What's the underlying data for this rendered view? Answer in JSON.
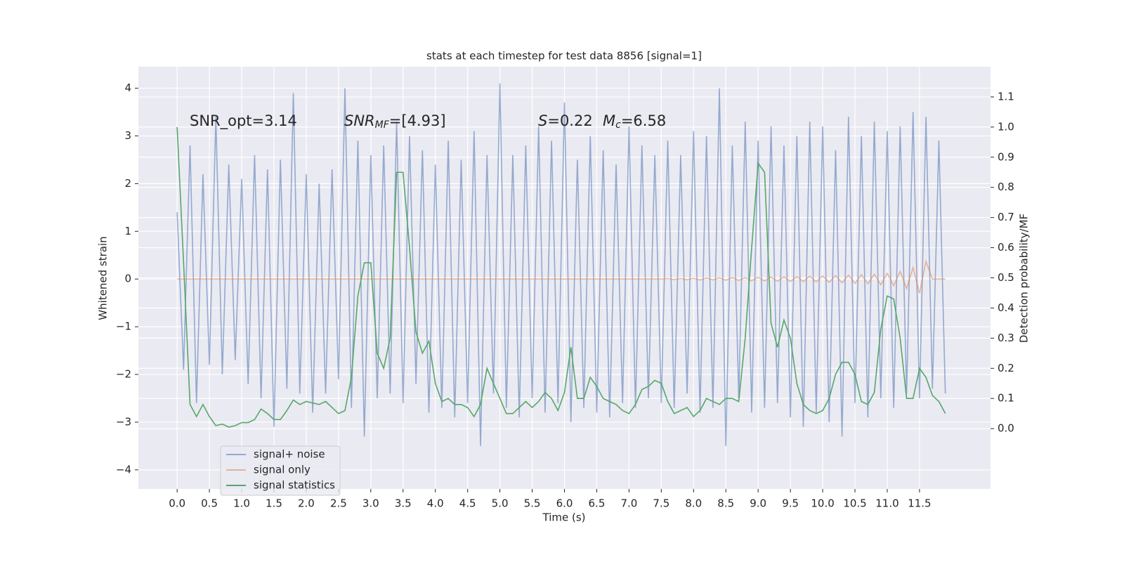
{
  "chart_data": {
    "type": "line",
    "title": "stats at each timestep for test data 8856 [signal=1]",
    "xlabel": "Time (s)",
    "ylabel": "Whitened strain",
    "y2label": "Detection probability/MF",
    "annotations": [
      {
        "base": "SNR_opt=3.14"
      },
      {
        "base": "SNR",
        "sub": "MF",
        "rest": "=[4.93]"
      },
      {
        "base": "S",
        "rest": "=0.22"
      },
      {
        "base": "M",
        "sub": "c",
        "rest": "=6.58"
      }
    ],
    "grid": true,
    "legend": "lower left",
    "xlim": [
      -0.6,
      12.6
    ],
    "ylim": [
      -4.4,
      4.45
    ],
    "y2lim": [
      -0.2,
      1.2
    ],
    "xticks": [
      {
        "value": 0,
        "label": "0.0"
      },
      0.5,
      {
        "value": 1,
        "label": "1.0"
      },
      1.5,
      {
        "value": 2,
        "label": "2.0"
      },
      2.5,
      {
        "value": 3,
        "label": "3.0"
      },
      3.5,
      {
        "value": 4,
        "label": "4.0"
      },
      4.5,
      {
        "value": 5,
        "label": "5.0"
      },
      5.5,
      {
        "value": 6,
        "label": "6.0"
      },
      6.5,
      {
        "value": 7,
        "label": "7.0"
      },
      7.5,
      {
        "value": 8,
        "label": "8.0"
      },
      8.5,
      {
        "value": 9,
        "label": "9.0"
      },
      9.5,
      {
        "value": 10,
        "label": "10.0"
      },
      10.5,
      {
        "value": 11,
        "label": "11.0"
      },
      11.5
    ],
    "yticks": [
      -4,
      -3,
      -2,
      -1,
      0,
      1,
      2,
      3,
      4
    ],
    "y2ticks": [
      {
        "value": 0,
        "label": "0.0"
      },
      0.1,
      0.2,
      0.3,
      0.4,
      0.5,
      0.6,
      0.7,
      0.8,
      0.9,
      {
        "value": 1,
        "label": "1.0"
      },
      1.1
    ],
    "x": [
      0,
      0.1,
      0.2,
      0.3,
      0.4,
      0.5,
      0.6,
      0.7,
      0.8,
      0.9,
      1,
      1.1,
      1.2,
      1.3,
      1.4,
      1.5,
      1.6,
      1.7,
      1.8,
      1.9,
      2,
      2.1,
      2.2,
      2.3,
      2.4,
      2.5,
      2.6,
      2.7,
      2.8,
      2.9,
      3,
      3.1,
      3.2,
      3.3,
      3.4,
      3.5,
      3.6,
      3.7,
      3.8,
      3.9,
      4,
      4.1,
      4.2,
      4.3,
      4.4,
      4.5,
      4.6,
      4.7,
      4.8,
      4.9,
      5,
      5.1,
      5.2,
      5.3,
      5.4,
      5.5,
      5.6,
      5.7,
      5.8,
      5.9,
      6,
      6.1,
      6.2,
      6.3,
      6.4,
      6.5,
      6.6,
      6.7,
      6.8,
      6.9,
      7,
      7.1,
      7.2,
      7.3,
      7.4,
      7.5,
      7.6,
      7.7,
      7.8,
      7.9,
      8,
      8.1,
      8.2,
      8.3,
      8.4,
      8.5,
      8.6,
      8.7,
      8.8,
      8.9,
      9,
      9.1,
      9.2,
      9.3,
      9.4,
      9.5,
      9.6,
      9.7,
      9.8,
      9.9,
      10,
      10.1,
      10.2,
      10.3,
      10.4,
      10.5,
      10.6,
      10.7,
      10.8,
      10.9,
      11,
      11.1,
      11.2,
      11.3,
      11.4,
      11.5,
      11.6,
      11.7,
      11.8,
      11.9
    ],
    "series": [
      {
        "name": "signal+ noise",
        "color": "#4c72b0",
        "values": [
          1.4,
          -1.9,
          2.8,
          -2.6,
          2.2,
          -1.8,
          3.4,
          -2.0,
          2.4,
          -1.7,
          2.1,
          -2.2,
          2.6,
          -2.5,
          2.3,
          -3.1,
          2.5,
          -2.3,
          3.9,
          -2.4,
          2.2,
          -2.8,
          2.0,
          -2.4,
          2.3,
          -2.1,
          4.0,
          -2.7,
          2.9,
          -3.3,
          2.6,
          -2.5,
          2.8,
          -2.4,
          3.3,
          -2.6,
          3.0,
          -2.2,
          2.7,
          -2.8,
          2.4,
          -2.7,
          2.9,
          -2.9,
          2.5,
          -2.6,
          3.1,
          -3.5,
          2.6,
          -2.4,
          4.1,
          -2.7,
          2.6,
          -2.9,
          2.8,
          -2.5,
          3.2,
          -2.8,
          2.9,
          -2.6,
          3.7,
          -3.0,
          2.5,
          -2.7,
          3.0,
          -2.8,
          2.7,
          -2.9,
          2.4,
          -2.6,
          3.2,
          -2.7,
          2.8,
          -2.5,
          2.6,
          -2.6,
          2.9,
          -2.7,
          2.6,
          -2.4,
          3.1,
          -2.8,
          3.0,
          -2.7,
          4.0,
          -3.5,
          2.8,
          -2.5,
          3.3,
          -2.8,
          2.9,
          -2.7,
          3.2,
          -2.6,
          2.8,
          -2.9,
          3.0,
          -3.1,
          3.3,
          -2.8,
          3.2,
          -3.0,
          2.7,
          -3.3,
          3.4,
          -2.6,
          3.0,
          -2.9,
          3.3,
          -2.5,
          3.1,
          -2.7,
          3.2,
          -2.4,
          3.5,
          -2.5,
          3.4,
          -2.3,
          2.9,
          -2.4
        ]
      },
      {
        "name": "signal only",
        "color": "#dd8452",
        "values": [
          0,
          0,
          0,
          0,
          0,
          0,
          0,
          0,
          0,
          0,
          0,
          0,
          0,
          0,
          0,
          0,
          0,
          0,
          0,
          0,
          0,
          0,
          0,
          0,
          0,
          0,
          0,
          0,
          0,
          0,
          0,
          0,
          0,
          0,
          0,
          0,
          0,
          0,
          0,
          0,
          0,
          0,
          0,
          0,
          0,
          0,
          0,
          0,
          0,
          0,
          0,
          0,
          0,
          0,
          0,
          0,
          0,
          0,
          0,
          0,
          0,
          0,
          0,
          0,
          0,
          0,
          0,
          0,
          0,
          0,
          0,
          0,
          0,
          0,
          0,
          0,
          0.01,
          -0.01,
          0.01,
          -0.015,
          0.015,
          -0.02,
          0.02,
          -0.02,
          0.025,
          -0.025,
          0.03,
          -0.03,
          0.03,
          -0.035,
          0.035,
          -0.04,
          0.04,
          -0.045,
          0.045,
          -0.05,
          0.05,
          -0.055,
          0.06,
          -0.06,
          0.065,
          -0.07,
          0.07,
          -0.08,
          0.08,
          -0.09,
          0.09,
          -0.1,
          0.1,
          -0.12,
          0.12,
          -0.14,
          0.16,
          -0.2,
          0.24,
          -0.3,
          0.37,
          0,
          0,
          0
        ]
      },
      {
        "name": "signal statistics",
        "color": "#55a868",
        "axis": "y2",
        "values": [
          1.0,
          0.55,
          0.08,
          0.04,
          0.08,
          0.04,
          0.01,
          0.015,
          0.005,
          0.01,
          0.02,
          0.02,
          0.03,
          0.065,
          0.05,
          0.03,
          0.03,
          0.06,
          0.095,
          0.08,
          0.09,
          0.085,
          0.08,
          0.09,
          0.07,
          0.05,
          0.06,
          0.17,
          0.44,
          0.55,
          0.55,
          0.25,
          0.2,
          0.3,
          0.85,
          0.85,
          0.6,
          0.32,
          0.25,
          0.29,
          0.15,
          0.09,
          0.1,
          0.08,
          0.08,
          0.07,
          0.04,
          0.08,
          0.2,
          0.15,
          0.1,
          0.05,
          0.05,
          0.07,
          0.09,
          0.07,
          0.09,
          0.12,
          0.1,
          0.06,
          0.12,
          0.27,
          0.1,
          0.1,
          0.17,
          0.14,
          0.1,
          0.09,
          0.08,
          0.06,
          0.05,
          0.08,
          0.13,
          0.14,
          0.16,
          0.15,
          0.09,
          0.05,
          0.06,
          0.07,
          0.04,
          0.06,
          0.1,
          0.09,
          0.08,
          0.1,
          0.1,
          0.09,
          0.3,
          0.6,
          0.88,
          0.85,
          0.35,
          0.27,
          0.36,
          0.3,
          0.15,
          0.08,
          0.06,
          0.05,
          0.06,
          0.1,
          0.18,
          0.22,
          0.22,
          0.18,
          0.09,
          0.08,
          0.12,
          0.33,
          0.44,
          0.43,
          0.3,
          0.1,
          0.1,
          0.2,
          0.17,
          0.11,
          0.09,
          0.05
        ]
      }
    ]
  }
}
